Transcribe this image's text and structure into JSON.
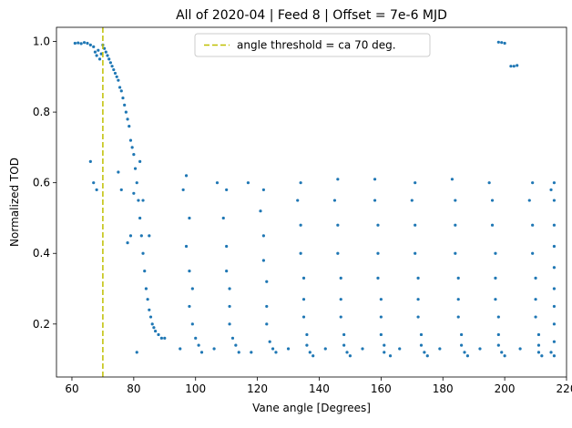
{
  "chart_data": {
    "type": "scatter",
    "title": "All of 2020-04 | Feed 8 | Offset = 7e-6 MJD",
    "xlabel": "Vane angle [Degrees]",
    "ylabel": "Normalized TOD",
    "xlim": [
      55,
      220
    ],
    "ylim": [
      0.05,
      1.04
    ],
    "xticks": [
      60,
      80,
      100,
      120,
      140,
      160,
      180,
      200,
      220
    ],
    "yticks": [
      0.2,
      0.4,
      0.6,
      0.8,
      1.0
    ],
    "xtick_labels": [
      "60",
      "80",
      "100",
      "120",
      "140",
      "160",
      "180",
      "200",
      "220"
    ],
    "ytick_labels": [
      "0.2",
      "0.4",
      "0.6",
      "0.8",
      "1.0"
    ],
    "grid": false,
    "legend_position": "top-center",
    "threshold": {
      "x": 70,
      "label": "angle threshold = ca 70 deg.",
      "color": "#bfbf00",
      "style": "dashed"
    },
    "marker_color": "#1f77b4",
    "series": [
      {
        "description": "Normalized TOD vs vane angle",
        "points": [
          [
            61,
            0.995
          ],
          [
            62,
            0.996
          ],
          [
            63,
            0.994
          ],
          [
            64,
            0.997
          ],
          [
            65,
            0.995
          ],
          [
            66,
            0.99
          ],
          [
            67,
            0.985
          ],
          [
            67.5,
            0.97
          ],
          [
            68,
            0.96
          ],
          [
            68.5,
            0.975
          ],
          [
            69,
            0.95
          ],
          [
            69.5,
            0.965
          ],
          [
            70,
            0.99
          ],
          [
            70.5,
            0.98
          ],
          [
            71,
            0.97
          ],
          [
            71.5,
            0.96
          ],
          [
            72,
            0.95
          ],
          [
            72.5,
            0.94
          ],
          [
            73,
            0.93
          ],
          [
            73.5,
            0.92
          ],
          [
            74,
            0.91
          ],
          [
            74.5,
            0.9
          ],
          [
            75,
            0.89
          ],
          [
            75.5,
            0.87
          ],
          [
            76,
            0.86
          ],
          [
            76.5,
            0.84
          ],
          [
            77,
            0.82
          ],
          [
            77.5,
            0.8
          ],
          [
            78,
            0.78
          ],
          [
            78.5,
            0.76
          ],
          [
            79,
            0.72
          ],
          [
            79.5,
            0.7
          ],
          [
            80,
            0.68
          ],
          [
            80.5,
            0.64
          ],
          [
            81,
            0.6
          ],
          [
            81.5,
            0.55
          ],
          [
            82,
            0.5
          ],
          [
            82.5,
            0.45
          ],
          [
            83,
            0.4
          ],
          [
            83.5,
            0.35
          ],
          [
            84,
            0.3
          ],
          [
            84.5,
            0.27
          ],
          [
            85,
            0.24
          ],
          [
            85.5,
            0.22
          ],
          [
            86,
            0.2
          ],
          [
            86.5,
            0.19
          ],
          [
            87,
            0.18
          ],
          [
            88,
            0.17
          ],
          [
            89,
            0.16
          ],
          [
            90,
            0.16
          ],
          [
            66,
            0.66
          ],
          [
            67,
            0.6
          ],
          [
            68,
            0.58
          ],
          [
            75,
            0.63
          ],
          [
            76,
            0.58
          ],
          [
            78,
            0.43
          ],
          [
            79,
            0.45
          ],
          [
            81,
            0.12
          ],
          [
            82,
            0.66
          ],
          [
            80,
            0.57
          ],
          [
            83,
            0.55
          ],
          [
            85,
            0.45
          ],
          [
            97,
            0.62
          ],
          [
            96,
            0.58
          ],
          [
            98,
            0.5
          ],
          [
            97,
            0.42
          ],
          [
            98,
            0.35
          ],
          [
            99,
            0.3
          ],
          [
            98,
            0.25
          ],
          [
            99,
            0.2
          ],
          [
            100,
            0.16
          ],
          [
            101,
            0.14
          ],
          [
            95,
            0.13
          ],
          [
            102,
            0.12
          ],
          [
            107,
            0.6
          ],
          [
            110,
            0.58
          ],
          [
            109,
            0.5
          ],
          [
            110,
            0.42
          ],
          [
            110,
            0.35
          ],
          [
            111,
            0.3
          ],
          [
            111,
            0.25
          ],
          [
            111,
            0.2
          ],
          [
            112,
            0.16
          ],
          [
            113,
            0.14
          ],
          [
            106,
            0.13
          ],
          [
            114,
            0.12
          ],
          [
            117,
            0.6
          ],
          [
            122,
            0.58
          ],
          [
            121,
            0.52
          ],
          [
            122,
            0.45
          ],
          [
            122,
            0.38
          ],
          [
            123,
            0.32
          ],
          [
            123,
            0.25
          ],
          [
            123,
            0.2
          ],
          [
            124,
            0.15
          ],
          [
            125,
            0.13
          ],
          [
            118,
            0.12
          ],
          [
            126,
            0.12
          ],
          [
            134,
            0.6
          ],
          [
            133,
            0.55
          ],
          [
            134,
            0.48
          ],
          [
            134,
            0.4
          ],
          [
            135,
            0.33
          ],
          [
            135,
            0.27
          ],
          [
            135,
            0.22
          ],
          [
            136,
            0.17
          ],
          [
            136,
            0.14
          ],
          [
            137,
            0.12
          ],
          [
            130,
            0.13
          ],
          [
            138,
            0.11
          ],
          [
            146,
            0.61
          ],
          [
            145,
            0.55
          ],
          [
            146,
            0.48
          ],
          [
            146,
            0.4
          ],
          [
            147,
            0.33
          ],
          [
            147,
            0.27
          ],
          [
            147,
            0.22
          ],
          [
            148,
            0.17
          ],
          [
            148,
            0.14
          ],
          [
            149,
            0.12
          ],
          [
            142,
            0.13
          ],
          [
            150,
            0.11
          ],
          [
            158,
            0.61
          ],
          [
            158,
            0.55
          ],
          [
            159,
            0.48
          ],
          [
            159,
            0.4
          ],
          [
            159,
            0.33
          ],
          [
            160,
            0.27
          ],
          [
            160,
            0.22
          ],
          [
            160,
            0.17
          ],
          [
            161,
            0.14
          ],
          [
            161,
            0.12
          ],
          [
            154,
            0.13
          ],
          [
            163,
            0.11
          ],
          [
            171,
            0.6
          ],
          [
            170,
            0.55
          ],
          [
            171,
            0.48
          ],
          [
            171,
            0.4
          ],
          [
            172,
            0.33
          ],
          [
            172,
            0.27
          ],
          [
            172,
            0.22
          ],
          [
            173,
            0.17
          ],
          [
            173,
            0.14
          ],
          [
            174,
            0.12
          ],
          [
            166,
            0.13
          ],
          [
            175,
            0.11
          ],
          [
            183,
            0.61
          ],
          [
            184,
            0.55
          ],
          [
            184,
            0.48
          ],
          [
            184,
            0.4
          ],
          [
            185,
            0.33
          ],
          [
            185,
            0.27
          ],
          [
            185,
            0.22
          ],
          [
            186,
            0.17
          ],
          [
            186,
            0.14
          ],
          [
            187,
            0.12
          ],
          [
            179,
            0.13
          ],
          [
            188,
            0.11
          ],
          [
            195,
            0.6
          ],
          [
            196,
            0.55
          ],
          [
            196,
            0.48
          ],
          [
            197,
            0.4
          ],
          [
            197,
            0.33
          ],
          [
            197,
            0.27
          ],
          [
            198,
            0.22
          ],
          [
            198,
            0.17
          ],
          [
            198,
            0.14
          ],
          [
            199,
            0.12
          ],
          [
            192,
            0.13
          ],
          [
            200,
            0.11
          ],
          [
            209,
            0.6
          ],
          [
            208,
            0.55
          ],
          [
            209,
            0.48
          ],
          [
            209,
            0.4
          ],
          [
            210,
            0.33
          ],
          [
            210,
            0.27
          ],
          [
            210,
            0.22
          ],
          [
            211,
            0.17
          ],
          [
            211,
            0.14
          ],
          [
            211,
            0.12
          ],
          [
            205,
            0.13
          ],
          [
            212,
            0.11
          ],
          [
            216,
            0.6
          ],
          [
            216,
            0.55
          ],
          [
            216,
            0.48
          ],
          [
            216,
            0.42
          ],
          [
            216,
            0.36
          ],
          [
            216,
            0.3
          ],
          [
            216,
            0.25
          ],
          [
            216,
            0.2
          ],
          [
            216,
            0.15
          ],
          [
            216,
            0.11
          ],
          [
            215,
            0.58
          ],
          [
            215,
            0.12
          ],
          [
            198,
            0.998
          ],
          [
            199,
            0.997
          ],
          [
            200,
            0.995
          ],
          [
            202,
            0.93
          ],
          [
            203,
            0.93
          ],
          [
            204,
            0.932
          ]
        ]
      }
    ]
  }
}
